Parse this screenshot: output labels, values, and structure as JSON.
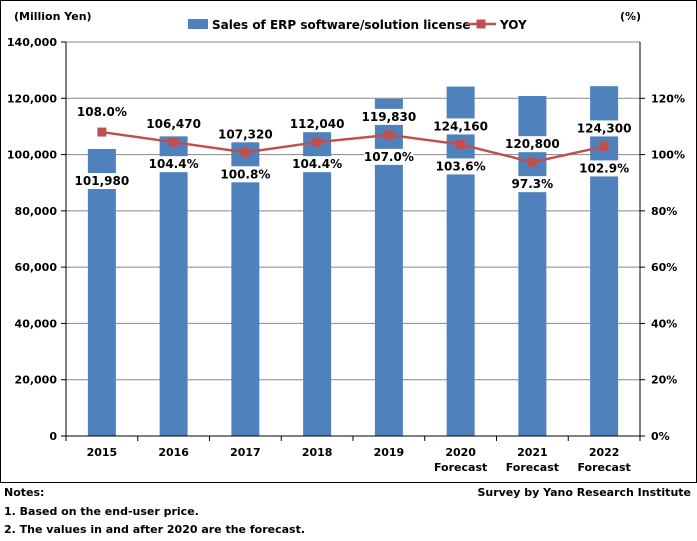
{
  "chart_data": {
    "type": "bar+line",
    "categories": [
      "2015",
      "2016",
      "2017",
      "2018",
      "2019",
      "2020\nForecast",
      "2021\nForecast",
      "2022\nForecast"
    ],
    "series": [
      {
        "name": "Sales of ERP software/solution license",
        "type": "bar",
        "axis": "left",
        "color": "#4f81bd",
        "values": [
          101980,
          106470,
          107320,
          112040,
          119830,
          124160,
          120800,
          124300
        ],
        "value_labels": [
          "101,980",
          "106,470",
          "107,320",
          "112,040",
          "119,830",
          "124,160",
          "120,800",
          "124,300"
        ]
      },
      {
        "name": "YOY",
        "type": "line",
        "axis": "right",
        "color": "#c0504d",
        "values": [
          108.0,
          104.4,
          100.8,
          104.4,
          107.0,
          103.6,
          97.3,
          102.9
        ],
        "value_labels": [
          "108.0%",
          "104.4%",
          "100.8%",
          "104.4%",
          "107.0%",
          "103.6%",
          "97.3%",
          "102.9%"
        ]
      }
    ],
    "left_axis": {
      "label": "(Million Yen)",
      "ylim": [
        0,
        140000
      ],
      "ticks": [
        0,
        20000,
        40000,
        60000,
        80000,
        100000,
        120000,
        140000
      ],
      "tick_labels": [
        "0",
        "20,000",
        "40,000",
        "60,000",
        "80,000",
        "100,000",
        "120,000",
        "140,000"
      ]
    },
    "right_axis": {
      "label": "(%)",
      "ylim": [
        0,
        140
      ],
      "ticks": [
        0,
        20,
        40,
        60,
        80,
        100,
        120
      ],
      "tick_labels": [
        "0%",
        "20%",
        "40%",
        "60%",
        "80%",
        "100%",
        "120%"
      ]
    },
    "gridlines": true,
    "legend_position": "top"
  },
  "notes": {
    "title": "Notes:",
    "items": [
      "1. Based on the end-user price.",
      "2. The values in and after 2020 are the forecast."
    ]
  },
  "source": "Survey by Yano Research Institute"
}
